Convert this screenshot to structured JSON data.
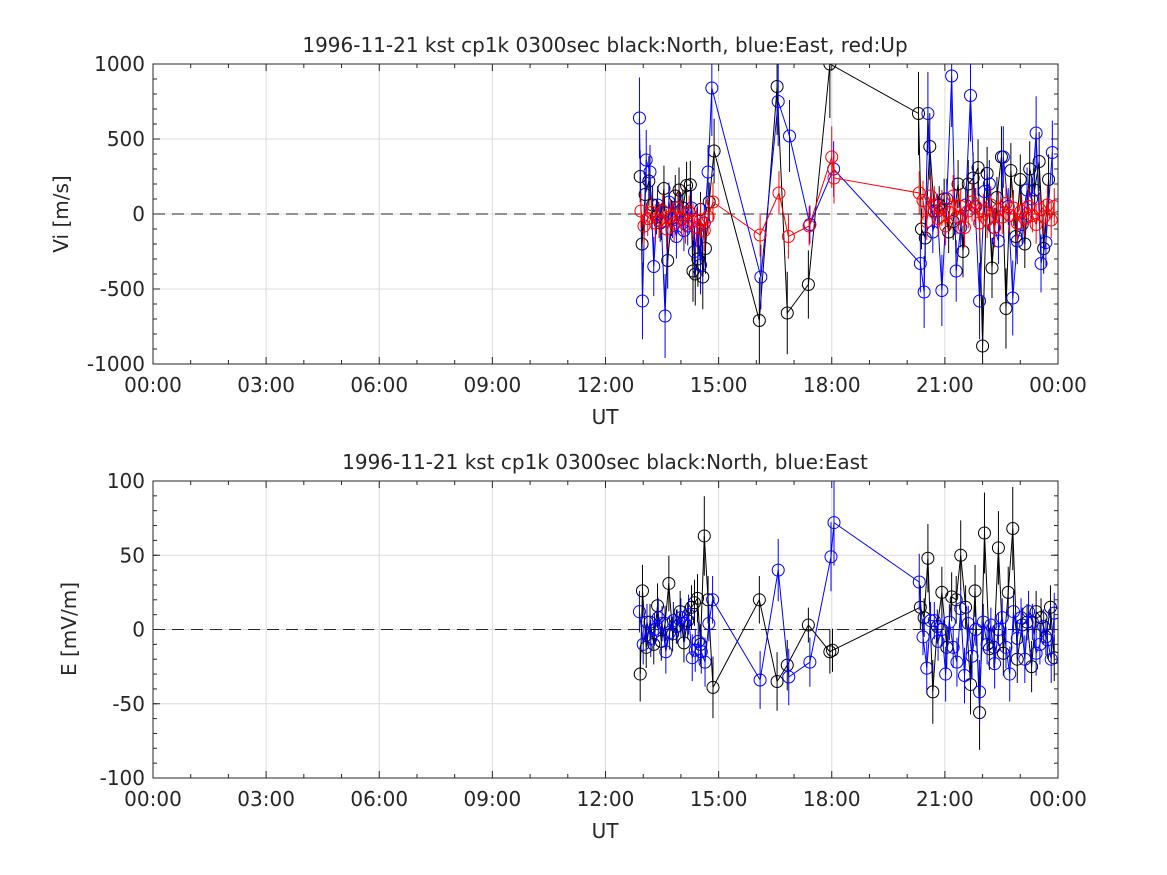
{
  "chart_data": [
    {
      "type": "scatter",
      "title": "1996-11-21 kst cp1k 0300sec black:North, blue:East, red:Up",
      "xlabel": "UT",
      "ylabel": "Vi [m/s]",
      "xlim": [
        0,
        24
      ],
      "ylim": [
        -1000,
        1000
      ],
      "xticks": [
        "00:00",
        "03:00",
        "06:00",
        "09:00",
        "12:00",
        "15:00",
        "18:00",
        "21:00",
        "00:00"
      ],
      "yticks": [
        "1000",
        "500",
        "0",
        "-500",
        "-1000"
      ],
      "grid": true,
      "reference_line": 0,
      "series": [
        {
          "name": "North",
          "color": "#000000",
          "x": [
            12.92,
            12.97,
            13.05,
            13.15,
            13.25,
            13.35,
            13.45,
            13.55,
            13.65,
            13.75,
            13.85,
            13.95,
            14.05,
            14.15,
            14.25,
            14.32,
            14.38,
            14.45,
            14.52,
            14.58,
            14.65,
            14.75,
            14.88,
            16.08,
            16.55,
            16.82,
            17.38,
            17.95,
            20.3,
            20.38,
            20.48,
            20.6,
            20.72,
            20.85,
            20.98,
            21.1,
            21.22,
            21.35,
            21.48,
            21.62,
            21.75,
            21.88,
            22.0,
            22.12,
            22.25,
            22.38,
            22.5,
            22.62,
            22.75,
            22.88,
            23.0,
            23.12,
            23.25,
            23.38,
            23.5,
            23.62,
            23.75
          ],
          "y": [
            250,
            -200,
            130,
            220,
            60,
            -20,
            -60,
            170,
            -310,
            -30,
            120,
            160,
            40,
            190,
            195,
            -380,
            -400,
            -300,
            30,
            -420,
            -230,
            80,
            420,
            -710,
            850,
            -660,
            -470,
            1000,
            670,
            -100,
            -160,
            450,
            20,
            60,
            100,
            -120,
            -50,
            200,
            -250,
            200,
            240,
            310,
            -880,
            270,
            -360,
            110,
            380,
            -630,
            290,
            -150,
            230,
            -200,
            300,
            160,
            350,
            -230,
            230
          ]
        },
        {
          "name": "East",
          "color": "#0000ff",
          "x": [
            12.9,
            12.98,
            13.08,
            13.18,
            13.28,
            13.38,
            13.48,
            13.58,
            13.68,
            13.78,
            13.88,
            13.98,
            14.08,
            14.18,
            14.28,
            14.36,
            14.44,
            14.52,
            14.62,
            14.72,
            14.82,
            16.12,
            16.58,
            16.88,
            17.42,
            18.05,
            20.35,
            20.45,
            20.55,
            20.68,
            20.8,
            20.92,
            21.05,
            21.18,
            21.3,
            21.42,
            21.55,
            21.68,
            21.8,
            21.92,
            22.05,
            22.18,
            22.3,
            22.42,
            22.55,
            22.68,
            22.8,
            22.92,
            23.05,
            23.18,
            23.3,
            23.42,
            23.55,
            23.68,
            23.85
          ],
          "y": [
            640,
            -580,
            360,
            280,
            -350,
            60,
            -50,
            -680,
            80,
            -40,
            -150,
            20,
            -110,
            -80,
            40,
            -250,
            -90,
            -340,
            -60,
            280,
            840,
            -420,
            750,
            520,
            -70,
            300,
            -330,
            -520,
            670,
            -120,
            20,
            -510,
            100,
            920,
            -380,
            -90,
            60,
            790,
            50,
            -580,
            150,
            200,
            -90,
            -180,
            380,
            50,
            -560,
            -180,
            -70,
            160,
            100,
            540,
            -330,
            -190,
            410
          ]
        },
        {
          "name": "Up",
          "color": "#ff0000",
          "x": [
            12.94,
            13.02,
            13.12,
            13.22,
            13.32,
            13.42,
            13.52,
            13.62,
            13.72,
            13.82,
            13.92,
            14.02,
            14.12,
            14.22,
            14.32,
            14.42,
            14.52,
            14.62,
            14.72,
            14.85,
            16.1,
            16.6,
            16.85,
            17.4,
            18.0,
            18.06,
            20.32,
            20.42,
            20.52,
            20.62,
            20.72,
            20.82,
            20.92,
            21.02,
            21.12,
            21.22,
            21.32,
            21.42,
            21.52,
            21.62,
            21.72,
            21.82,
            21.92,
            22.02,
            22.12,
            22.22,
            22.32,
            22.42,
            22.52,
            22.62,
            22.72,
            22.82,
            22.92,
            23.02,
            23.12,
            23.22,
            23.32,
            23.42,
            23.52,
            23.62,
            23.72,
            23.82,
            23.9
          ],
          "y": [
            20,
            -80,
            -30,
            10,
            -60,
            -40,
            20,
            -100,
            -20,
            -60,
            40,
            -30,
            -70,
            10,
            -50,
            -90,
            -40,
            -110,
            -20,
            80,
            -140,
            140,
            -150,
            -80,
            380,
            240,
            140,
            90,
            -50,
            120,
            60,
            -30,
            40,
            -80,
            10,
            120,
            -20,
            50,
            -90,
            20,
            80,
            50,
            -60,
            20,
            -40,
            60,
            -90,
            30,
            -20,
            70,
            -10,
            40,
            -60,
            20,
            -30,
            50,
            -10,
            -70,
            30,
            -20,
            60,
            -40,
            50
          ]
        }
      ]
    },
    {
      "type": "scatter",
      "title": "1996-11-21 kst cp1k 0300sec black:North, blue:East",
      "xlabel": "UT",
      "ylabel": "E [mV/m]",
      "xlim": [
        0,
        24
      ],
      "ylim": [
        -100,
        100
      ],
      "xticks": [
        "00:00",
        "03:00",
        "06:00",
        "09:00",
        "12:00",
        "15:00",
        "18:00",
        "21:00",
        "00:00"
      ],
      "yticks": [
        "100",
        "50",
        "0",
        "-50",
        "-100"
      ],
      "grid": true,
      "reference_line": 0,
      "series": [
        {
          "name": "North",
          "color": "#000000",
          "x": [
            12.92,
            12.98,
            13.08,
            13.18,
            13.28,
            13.38,
            13.48,
            13.58,
            13.68,
            13.78,
            13.88,
            13.98,
            14.08,
            14.18,
            14.28,
            14.36,
            14.44,
            14.52,
            14.62,
            14.72,
            14.85,
            16.08,
            16.55,
            16.82,
            17.38,
            17.95,
            18.02,
            20.35,
            20.45,
            20.55,
            20.68,
            20.8,
            20.92,
            21.05,
            21.18,
            21.3,
            21.42,
            21.55,
            21.68,
            21.8,
            21.92,
            22.05,
            22.18,
            22.3,
            22.42,
            22.55,
            22.68,
            22.8,
            22.92,
            23.05,
            23.18,
            23.3,
            23.42,
            23.55,
            23.68,
            23.8,
            23.9
          ],
          "y": [
            -30,
            26,
            -12,
            5,
            -10,
            16,
            -8,
            4,
            31,
            -3,
            2,
            12,
            -9,
            6,
            15,
            18,
            21,
            -10,
            63,
            20,
            -39,
            20,
            -35,
            -24,
            3,
            -15,
            -14,
            15,
            8,
            48,
            -42,
            2,
            25,
            -12,
            22,
            20,
            50,
            15,
            -37,
            26,
            -56,
            65,
            -13,
            -12,
            55,
            -16,
            25,
            68,
            -20,
            3,
            5,
            -25,
            12,
            8,
            -5,
            15,
            -19
          ]
        },
        {
          "name": "East",
          "color": "#0000ff",
          "x": [
            12.9,
            13.0,
            13.1,
            13.2,
            13.3,
            13.4,
            13.5,
            13.6,
            13.7,
            13.8,
            13.9,
            14.0,
            14.1,
            14.2,
            14.3,
            14.38,
            14.46,
            14.54,
            14.64,
            14.74,
            14.84,
            16.1,
            16.58,
            16.86,
            17.42,
            17.98,
            18.06,
            20.32,
            20.42,
            20.52,
            20.62,
            20.72,
            20.82,
            20.92,
            21.02,
            21.12,
            21.22,
            21.32,
            21.42,
            21.52,
            21.62,
            21.72,
            21.82,
            21.92,
            22.02,
            22.12,
            22.22,
            22.32,
            22.42,
            22.52,
            22.62,
            22.72,
            22.82,
            22.92,
            23.02,
            23.12,
            23.22,
            23.32,
            23.42,
            23.52,
            23.62,
            23.72,
            23.82,
            23.9
          ],
          "y": [
            12,
            -10,
            5,
            -6,
            0,
            8,
            4,
            -15,
            -2,
            6,
            2,
            8,
            4,
            10,
            -19,
            -14,
            -8,
            -15,
            -22,
            4,
            20,
            -34,
            40,
            -32,
            -22,
            49,
            72,
            32,
            -5,
            -26,
            6,
            6,
            -8,
            0,
            -30,
            5,
            -12,
            -22,
            14,
            -31,
            4,
            -18,
            0,
            -42,
            5,
            -10,
            3,
            -23,
            0,
            8,
            -12,
            -30,
            12,
            -6,
            8,
            -20,
            12,
            5,
            -16,
            -10,
            2,
            -7,
            -20,
            11
          ]
        }
      ]
    }
  ]
}
